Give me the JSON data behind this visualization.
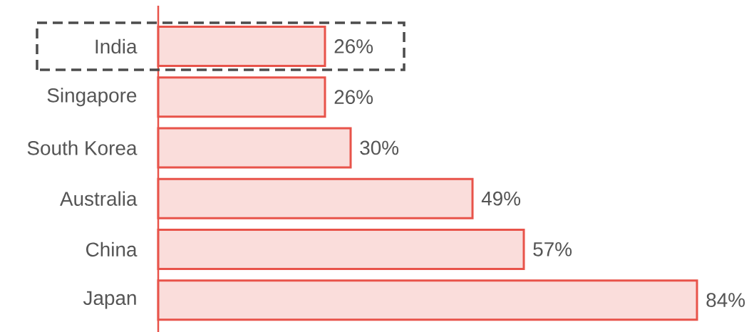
{
  "chart_data": {
    "type": "bar",
    "orientation": "horizontal",
    "categories": [
      "India",
      "Singapore",
      "South Korea",
      "Australia",
      "China",
      "Japan"
    ],
    "values": [
      26,
      26,
      30,
      49,
      57,
      84
    ],
    "value_labels": [
      "26%",
      "26%",
      "30%",
      "49%",
      "57%",
      "84%"
    ],
    "color": "#e8534a"
  }
}
